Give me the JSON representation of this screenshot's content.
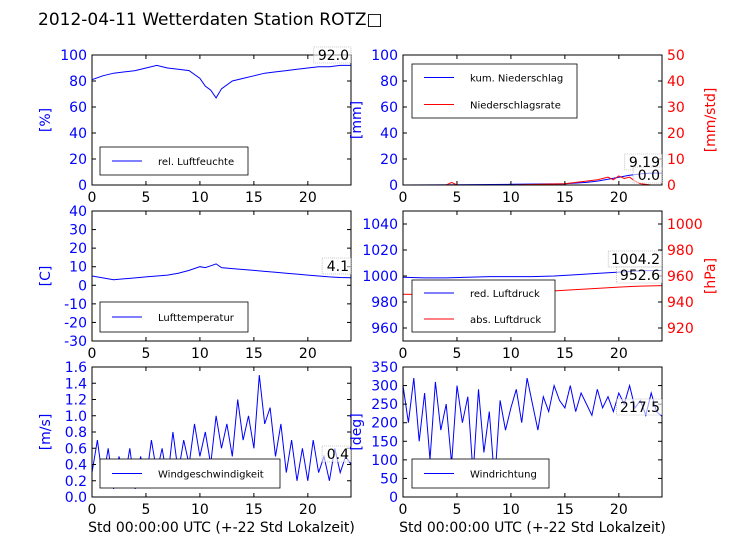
{
  "page_title": "2012-04-11 Wetterdaten Station ROTZ□",
  "colors": {
    "primary": "#0000ff",
    "secondary": "#ff0000",
    "axis": "#000000"
  },
  "chart_data": [
    {
      "id": "humidity",
      "type": "line",
      "xlim": [
        0,
        24
      ],
      "ylim": [
        0,
        100
      ],
      "x_ticks": [
        0,
        5,
        10,
        15,
        20
      ],
      "y_ticks": [
        0,
        20,
        40,
        60,
        80,
        100
      ],
      "ylabel": "[%]",
      "xlabel": "",
      "last_value_label": "92.0",
      "legend": [
        {
          "name": "rel. Luftfeuchte",
          "color": "#0000ff"
        }
      ],
      "series": [
        {
          "name": "rel. Luftfeuchte",
          "axis": "left",
          "color": "#0000ff",
          "x": [
            0,
            1,
            2,
            3,
            4,
            5,
            6,
            7,
            8,
            9,
            10,
            10.5,
            11,
            11.5,
            12,
            13,
            14,
            15,
            16,
            17,
            18,
            19,
            20,
            21,
            22,
            23,
            24
          ],
          "y": [
            81,
            84,
            86,
            87,
            88,
            90,
            92,
            90,
            89,
            88,
            82,
            76,
            73,
            67,
            74,
            80,
            82,
            84,
            86,
            87,
            88,
            89,
            90,
            91,
            91,
            92,
            92
          ]
        }
      ]
    },
    {
      "id": "precip",
      "type": "line",
      "xlim": [
        0,
        24
      ],
      "ylim": [
        0,
        100
      ],
      "y2lim": [
        0,
        50
      ],
      "x_ticks": [
        0,
        5,
        10,
        15,
        20
      ],
      "y_ticks": [
        0,
        20,
        40,
        60,
        80,
        100
      ],
      "y2_ticks": [
        0,
        10,
        20,
        30,
        40,
        50
      ],
      "ylabel": "[mm]",
      "y2label": "[mm/std]",
      "xlabel": "",
      "last_value_label": "9.19",
      "last_value_label_2": "0.0",
      "legend": [
        {
          "name": "kum. Niederschlag",
          "color": "#0000ff"
        },
        {
          "name": "Niederschlagsrate",
          "color": "#ff0000"
        }
      ],
      "series": [
        {
          "name": "kum. Niederschlag",
          "axis": "left",
          "color": "#0000ff",
          "x": [
            0,
            5,
            10,
            15,
            17,
            18,
            19,
            20,
            21,
            22,
            23,
            24
          ],
          "y": [
            0,
            0.2,
            0.5,
            1.0,
            2.0,
            3.0,
            4.5,
            6.0,
            7.5,
            8.5,
            9.19,
            9.19
          ]
        },
        {
          "name": "Niederschlagsrate",
          "axis": "right",
          "color": "#ff0000",
          "x": [
            0,
            4,
            4.5,
            5,
            6,
            10,
            15,
            16,
            17,
            18,
            18.5,
            19,
            19.5,
            20,
            20.5,
            21,
            21.5,
            22,
            23,
            24
          ],
          "y": [
            0,
            0,
            1,
            0,
            0,
            0,
            0.5,
            1,
            1.5,
            2,
            2.5,
            3,
            2,
            3.5,
            2.5,
            3,
            1.5,
            0.5,
            0,
            0
          ]
        }
      ]
    },
    {
      "id": "temperature",
      "type": "line",
      "xlim": [
        0,
        24
      ],
      "ylim": [
        -30,
        40
      ],
      "x_ticks": [
        0,
        5,
        10,
        15,
        20
      ],
      "y_ticks": [
        -30,
        -20,
        -10,
        0,
        10,
        20,
        30,
        40
      ],
      "ylabel": "[C]",
      "xlabel": "",
      "last_value_label": "4.1",
      "legend": [
        {
          "name": "Lufttemperatur",
          "color": "#0000ff"
        }
      ],
      "series": [
        {
          "name": "Lufttemperatur",
          "axis": "left",
          "color": "#0000ff",
          "x": [
            0,
            1,
            2,
            3,
            4,
            5,
            6,
            7,
            8,
            9,
            10,
            10.5,
            11,
            11.5,
            12,
            13,
            14,
            15,
            16,
            17,
            18,
            19,
            20,
            21,
            22,
            23,
            24
          ],
          "y": [
            5,
            4,
            3,
            3.5,
            4,
            4.5,
            5,
            5.5,
            6.5,
            8,
            10,
            9.5,
            10.5,
            11.5,
            9.5,
            9,
            8.5,
            8,
            7.5,
            7,
            6.5,
            6,
            5.5,
            5,
            4.5,
            4.2,
            4.1
          ]
        }
      ]
    },
    {
      "id": "pressure",
      "type": "line",
      "xlim": [
        0,
        24
      ],
      "ylim": [
        950,
        1050
      ],
      "y2lim": [
        910,
        1010
      ],
      "x_ticks": [
        0,
        5,
        10,
        15,
        20
      ],
      "y_ticks": [
        960,
        980,
        1000,
        1020,
        1040
      ],
      "y2_ticks": [
        920,
        940,
        960,
        980,
        1000
      ],
      "ylabel": "",
      "y2label": "[hPa]",
      "xlabel": "",
      "last_value_label": "1004.2",
      "last_value_label_2": "952.6",
      "legend": [
        {
          "name": "red. Luftdruck",
          "color": "#0000ff"
        },
        {
          "name": "abs. Luftdruck",
          "color": "#ff0000"
        }
      ],
      "series": [
        {
          "name": "red. Luftdruck",
          "axis": "left",
          "color": "#0000ff",
          "x": [
            0,
            2,
            4,
            6,
            8,
            10,
            12,
            14,
            16,
            18,
            20,
            22,
            24
          ],
          "y": [
            999,
            998.5,
            998.5,
            999,
            999.5,
            999.5,
            999.5,
            1000,
            1001,
            1002,
            1003,
            1004,
            1004.2
          ]
        },
        {
          "name": "abs. Luftdruck",
          "axis": "right",
          "color": "#ff0000",
          "x": [
            0,
            2,
            4,
            6,
            8,
            10,
            12,
            14,
            16,
            18,
            20,
            22,
            24
          ],
          "y": [
            946,
            945.8,
            946,
            946.5,
            947,
            947.5,
            948,
            948.5,
            949.5,
            950.5,
            951.5,
            952.2,
            952.6
          ]
        }
      ]
    },
    {
      "id": "wind_speed",
      "type": "line",
      "xlim": [
        0,
        24
      ],
      "ylim": [
        0,
        1.6
      ],
      "x_ticks": [
        0,
        5,
        10,
        15,
        20
      ],
      "y_ticks": [
        0.0,
        0.2,
        0.4,
        0.6,
        0.8,
        1.0,
        1.2,
        1.4,
        1.6
      ],
      "ylabel": "[m/s]",
      "xlabel": "Std 00:00:00 UTC (+-22 Std Lokalzeit)",
      "last_value_label": "0.4",
      "legend": [
        {
          "name": "Windgeschwindigkeit",
          "color": "#0000ff"
        }
      ],
      "series": [
        {
          "name": "Windgeschwindigkeit",
          "axis": "left",
          "color": "#0000ff",
          "x": [
            0,
            0.5,
            1,
            1.5,
            2,
            2.5,
            3,
            3.5,
            4,
            4.5,
            5,
            5.5,
            6,
            6.5,
            7,
            7.5,
            8,
            8.5,
            9,
            9.5,
            10,
            10.5,
            11,
            11.5,
            12,
            12.5,
            13,
            13.5,
            14,
            14.5,
            15,
            15.5,
            16,
            16.5,
            17,
            17.5,
            18,
            18.5,
            19,
            19.5,
            20,
            20.5,
            21,
            21.5,
            22,
            22.5,
            23,
            23.5,
            24
          ],
          "y": [
            0.3,
            0.7,
            0.2,
            0.6,
            0.1,
            0.5,
            0.2,
            0.6,
            0.1,
            0.5,
            0.2,
            0.7,
            0.3,
            0.6,
            0.2,
            0.8,
            0.3,
            0.7,
            0.4,
            0.9,
            0.5,
            0.8,
            0.4,
            1.0,
            0.6,
            0.9,
            0.5,
            1.2,
            0.7,
            1.0,
            0.6,
            1.5,
            0.9,
            1.1,
            0.5,
            0.9,
            0.3,
            0.7,
            0.2,
            0.6,
            0.2,
            0.7,
            0.3,
            0.5,
            0.2,
            0.6,
            0.3,
            0.5,
            0.4
          ]
        }
      ]
    },
    {
      "id": "wind_dir",
      "type": "line",
      "xlim": [
        0,
        24
      ],
      "ylim": [
        0,
        350
      ],
      "x_ticks": [
        0,
        5,
        10,
        15,
        20
      ],
      "y_ticks": [
        0,
        50,
        100,
        150,
        200,
        250,
        300,
        350
      ],
      "ylabel": "[deg]",
      "xlabel": "Std 00:00:00 UTC (+-22 Std Lokalzeit)",
      "last_value_label": "217.5",
      "legend": [
        {
          "name": "Windrichtung",
          "color": "#0000ff"
        }
      ],
      "series": [
        {
          "name": "Windrichtung",
          "axis": "left",
          "color": "#0000ff",
          "x": [
            0,
            0.5,
            1,
            1.5,
            2,
            2.5,
            3,
            3.5,
            4,
            4.5,
            5,
            5.5,
            6,
            6.5,
            7,
            7.5,
            8,
            8.5,
            9,
            9.5,
            10,
            10.5,
            11,
            11.5,
            12,
            12.5,
            13,
            13.5,
            14,
            14.5,
            15,
            15.5,
            16,
            16.5,
            17,
            17.5,
            18,
            18.5,
            19,
            19.5,
            20,
            20.5,
            21,
            21.5,
            22,
            22.5,
            23,
            23.5,
            24
          ],
          "y": [
            300,
            200,
            320,
            150,
            280,
            100,
            310,
            180,
            250,
            90,
            300,
            200,
            270,
            60,
            290,
            120,
            230,
            40,
            260,
            180,
            240,
            290,
            200,
            320,
            250,
            180,
            270,
            230,
            300,
            260,
            240,
            300,
            230,
            280,
            250,
            220,
            290,
            240,
            270,
            230,
            280,
            250,
            300,
            240,
            260,
            220,
            280,
            230,
            217.5
          ]
        }
      ]
    }
  ]
}
